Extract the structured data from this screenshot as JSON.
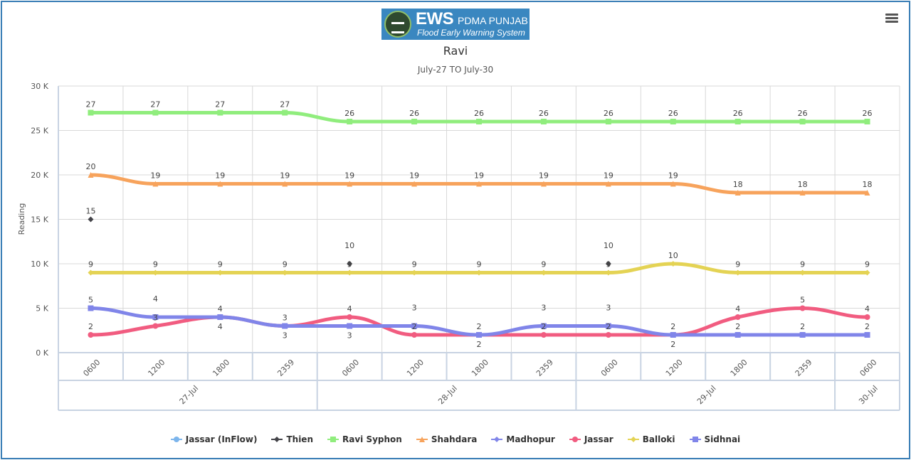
{
  "logo": {
    "title": "EWS",
    "org": "PDMA PUNJAB",
    "subtitle": "Flood Early Warning System"
  },
  "menu_icon": "hamburger-menu-icon",
  "chart_data": {
    "type": "line",
    "title": "Ravi",
    "subtitle": "July-27 TO July-30",
    "ylabel": "Reading",
    "xlabel": "",
    "ylim": [
      0,
      30000
    ],
    "yticks": [
      0,
      5000,
      10000,
      15000,
      20000,
      25000,
      30000
    ],
    "ytick_labels": [
      "0 K",
      "5 K",
      "10 K",
      "15 K",
      "20 K",
      "25 K",
      "30 K"
    ],
    "grid": true,
    "legend_position": "bottom",
    "x": [
      "0600",
      "1200",
      "1800",
      "2359",
      "0600",
      "1200",
      "1800",
      "2359",
      "0600",
      "1200",
      "1800",
      "2359",
      "0600"
    ],
    "x_groups": [
      {
        "label": "27-Jul",
        "count": 4
      },
      {
        "label": "28-Jul",
        "count": 4
      },
      {
        "label": "29-Jul",
        "count": 4
      },
      {
        "label": "30-Jul",
        "count": 1
      }
    ],
    "series": [
      {
        "name": "Jassar (InFlow)",
        "color": "#7cb5ec",
        "marker": "circle",
        "values": [
          null,
          null,
          null,
          null,
          null,
          null,
          null,
          null,
          null,
          null,
          null,
          null,
          null
        ],
        "labels": []
      },
      {
        "name": "Thien",
        "color": "#434348",
        "marker": "diamond",
        "values": [
          15000,
          null,
          null,
          null,
          10000,
          null,
          null,
          null,
          10000,
          null,
          null,
          null,
          null
        ],
        "labels": [
          "15",
          null,
          null,
          null,
          "10",
          null,
          null,
          null,
          "10",
          null,
          null,
          null,
          null
        ]
      },
      {
        "name": "Ravi Syphon",
        "color": "#90ed7d",
        "marker": "square",
        "values": [
          27000,
          27000,
          27000,
          27000,
          26000,
          26000,
          26000,
          26000,
          26000,
          26000,
          26000,
          26000,
          26000
        ],
        "labels": [
          "27",
          "27",
          "27",
          "27",
          "26",
          "26",
          "26",
          "26",
          "26",
          "26",
          "26",
          "26",
          "26"
        ]
      },
      {
        "name": "Shahdara",
        "color": "#f7a35c",
        "marker": "triangle",
        "values": [
          20000,
          19000,
          19000,
          19000,
          19000,
          19000,
          19000,
          19000,
          19000,
          19000,
          18000,
          18000,
          18000
        ],
        "labels": [
          "20",
          "19",
          "19",
          "19",
          "19",
          "19",
          "19",
          "19",
          "19",
          "19",
          "18",
          "18",
          "18"
        ]
      },
      {
        "name": "Madhopur",
        "color": "#8085e9",
        "marker": "diamond",
        "values": [
          null,
          null,
          null,
          null,
          null,
          null,
          null,
          null,
          null,
          null,
          null,
          null,
          null
        ],
        "labels": []
      },
      {
        "name": "Jassar",
        "color": "#f15c80",
        "marker": "circle",
        "values": [
          2000,
          3000,
          4000,
          3000,
          4000,
          2000,
          2000,
          2000,
          2000,
          2000,
          4000,
          5000,
          4000
        ],
        "labels": [
          "2",
          "3",
          "4",
          "3",
          "4",
          "2",
          "2",
          "2",
          "2",
          "2",
          "4",
          "5",
          "4"
        ]
      },
      {
        "name": "Balloki",
        "color": "#e4d354",
        "marker": "diamond",
        "values": [
          9000,
          9000,
          9000,
          9000,
          9000,
          9000,
          9000,
          9000,
          9000,
          10000,
          9000,
          9000,
          9000
        ],
        "labels": [
          "9",
          "9",
          "9",
          "9",
          "9",
          "9",
          "9",
          "9",
          "9",
          "10",
          "9",
          "9",
          "9"
        ]
      },
      {
        "name": "Sidhnai",
        "color": "#8085e9",
        "marker": "square",
        "values": [
          5000,
          4000,
          4000,
          3000,
          3000,
          3000,
          2000,
          3000,
          3000,
          2000,
          2000,
          2000,
          2000
        ],
        "labels": [
          "5",
          "4",
          "4",
          "3",
          "3",
          "3",
          "2",
          "3",
          "3",
          "2",
          "2",
          "2",
          "2"
        ]
      }
    ]
  }
}
